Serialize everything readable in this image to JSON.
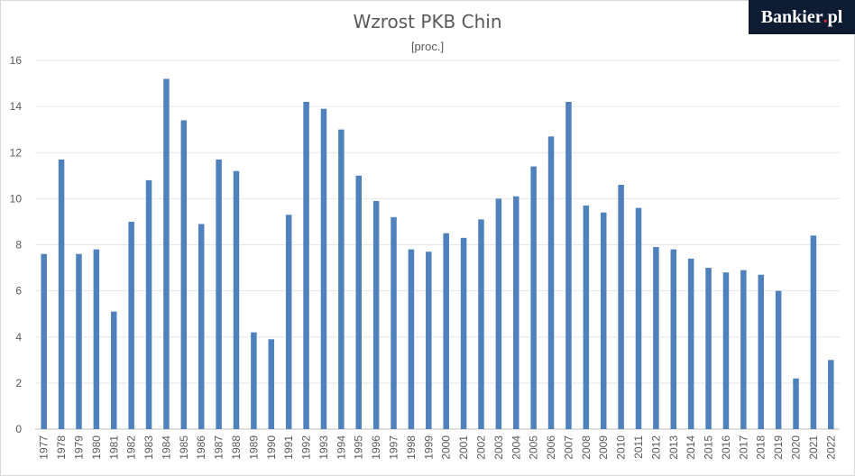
{
  "chart_data": {
    "type": "bar",
    "title": "Wzrost PKB Chin",
    "subtitle": "[proc.]",
    "xlabel": "",
    "ylabel": "",
    "ylim": [
      0,
      16
    ],
    "yticks": [
      0,
      2,
      4,
      6,
      8,
      10,
      12,
      14,
      16
    ],
    "grid": true,
    "bar_color": "#4f81bd",
    "categories": [
      "1977",
      "1978",
      "1979",
      "1980",
      "1981",
      "1982",
      "1983",
      "1984",
      "1985",
      "1986",
      "1987",
      "1988",
      "1989",
      "1990",
      "1991",
      "1992",
      "1993",
      "1994",
      "1995",
      "1996",
      "1997",
      "1998",
      "1999",
      "2000",
      "2001",
      "2002",
      "2003",
      "2004",
      "2005",
      "2006",
      "2007",
      "2008",
      "2009",
      "2010",
      "2011",
      "2012",
      "2013",
      "2014",
      "2015",
      "2016",
      "2017",
      "2018",
      "2019",
      "2020",
      "2021",
      "2022"
    ],
    "values": [
      7.6,
      11.7,
      7.6,
      7.8,
      5.1,
      9.0,
      10.8,
      15.2,
      13.4,
      8.9,
      11.7,
      11.2,
      4.2,
      3.9,
      9.3,
      14.2,
      13.9,
      13.0,
      11.0,
      9.9,
      9.2,
      7.8,
      7.7,
      8.5,
      8.3,
      9.1,
      10.0,
      10.1,
      11.4,
      12.7,
      14.2,
      9.7,
      9.4,
      10.6,
      9.6,
      7.9,
      7.8,
      7.4,
      7.0,
      6.8,
      6.9,
      6.7,
      6.0,
      2.2,
      8.4,
      3.0
    ]
  },
  "branding": {
    "logo_main": "Bankier",
    "logo_dot": ".",
    "logo_suffix": "pl"
  }
}
